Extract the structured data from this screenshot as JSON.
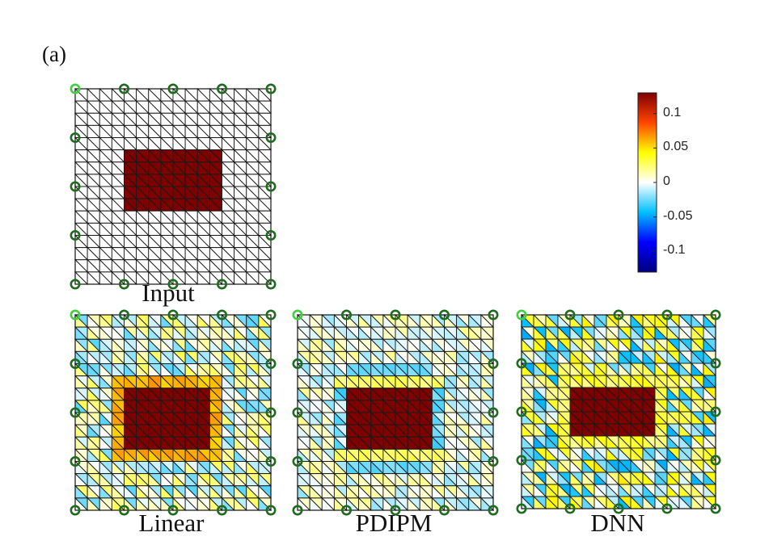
{
  "figure": {
    "panel_label": "(a)",
    "mesh_grid_size": 16,
    "electrodes_per_side": 5,
    "electrode_color": "#1e6b1e",
    "first_electrode_color": "#3fcf3f",
    "edge_color": "#1a1a1a"
  },
  "colorbar": {
    "min": -0.13,
    "max": 0.13,
    "ticks": [
      {
        "value": 0.1,
        "label": "0.1"
      },
      {
        "value": 0.05,
        "label": "0.05"
      },
      {
        "value": 0,
        "label": "0"
      },
      {
        "value": -0.05,
        "label": "-0.05"
      },
      {
        "value": -0.1,
        "label": "-0.1"
      }
    ],
    "colormap": [
      "#00007f",
      "#0000ff",
      "#00bfff",
      "#ffffff",
      "#ffff00",
      "#ff4500",
      "#7f0000"
    ]
  },
  "panels": [
    {
      "id": "input",
      "label": "Input",
      "inclusion": {
        "row_start": 5,
        "row_end": 9,
        "col_start": 4,
        "col_end": 11,
        "value": 0.13
      },
      "halo": null,
      "noise": 0
    },
    {
      "id": "linear",
      "label": "Linear",
      "inclusion": {
        "row_start": 6,
        "row_end": 10,
        "col_start": 4,
        "col_end": 10,
        "value": 0.13
      },
      "halo": {
        "width": 1,
        "value": 0.06
      },
      "noise": 0.018
    },
    {
      "id": "pdipm",
      "label": "PDIPM",
      "inclusion": {
        "row_start": 6,
        "row_end": 10,
        "col_start": 4,
        "col_end": 10,
        "value": 0.13
      },
      "halo": {
        "width": 1,
        "value": 0.025,
        "side_value": -0.02,
        "outer_value": -0.025
      },
      "noise": 0.012
    },
    {
      "id": "dnn",
      "label": "DNN",
      "inclusion": {
        "row_start": 6,
        "row_end": 9,
        "col_start": 4,
        "col_end": 10,
        "value": 0.13
      },
      "halo": {
        "width": 1,
        "value": 0.03
      },
      "noise": 0.03
    }
  ]
}
